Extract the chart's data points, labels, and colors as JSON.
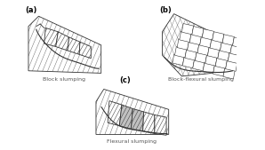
{
  "title_a": "(a)",
  "title_b": "(b)",
  "title_c": "(c)",
  "label_a": "Block slumping",
  "label_b": "Block-flexural slumping",
  "label_c": "Flexural slumping",
  "bg_color": "#ffffff",
  "lc": "#333333",
  "lc_light": "#999999"
}
